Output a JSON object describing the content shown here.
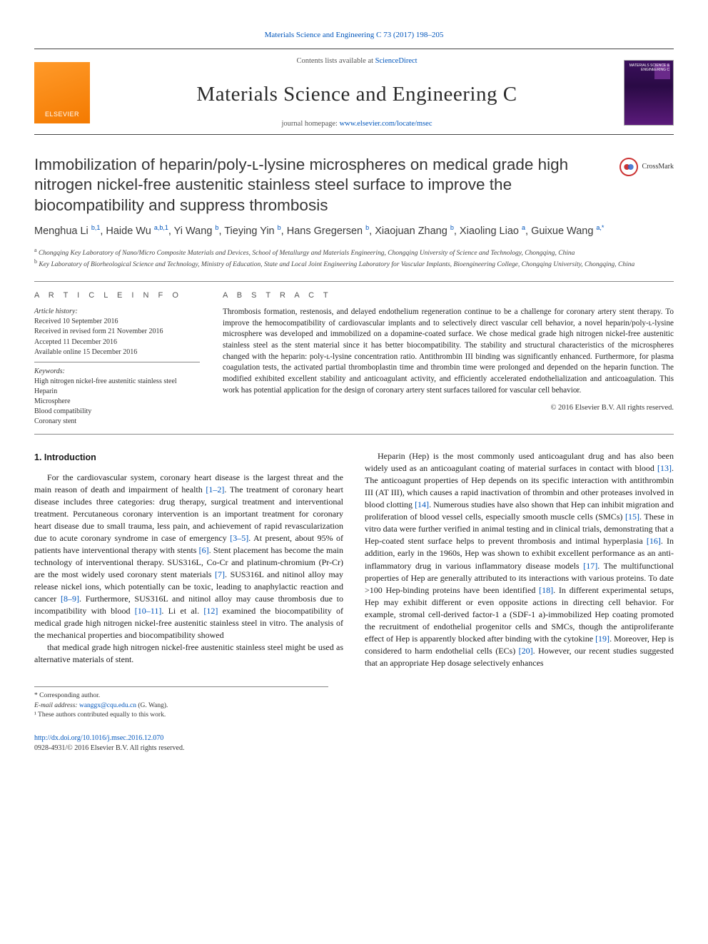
{
  "top_link": {
    "prefix": "",
    "text": "Materials Science and Engineering C 73 (2017) 198–205"
  },
  "masthead": {
    "publisher_logo_text": "ELSEVIER",
    "contents_line_prefix": "Contents lists available at ",
    "contents_line_link": "ScienceDirect",
    "journal_title": "Materials Science and Engineering C",
    "homepage_prefix": "journal homepage: ",
    "homepage_url": "www.elsevier.com/locate/msec",
    "cover_label": "MATERIALS SCIENCE & ENGINEERING C"
  },
  "crossmark_label": "CrossMark",
  "article": {
    "title": "Immobilization of heparin/poly-ʟ-lysine microspheres on medical grade high nitrogen nickel-free austenitic stainless steel surface to improve the biocompatibility and suppress thrombosis",
    "authors_html_segments": [
      {
        "name": "Menghua Li",
        "sup": "b,1"
      },
      {
        "name": "Haide Wu",
        "sup": "a,b,1"
      },
      {
        "name": "Yi Wang",
        "sup": "b"
      },
      {
        "name": "Tieying Yin",
        "sup": "b"
      },
      {
        "name": "Hans Gregersen",
        "sup": "b"
      },
      {
        "name": "Xiaojuan Zhang",
        "sup": "b"
      },
      {
        "name": "Xiaoling Liao",
        "sup": "a"
      },
      {
        "name": "Guixue Wang",
        "sup": "a,*"
      }
    ],
    "affiliations": [
      {
        "key": "a",
        "text": "Chongqing Key Laboratory of Nano/Micro Composite Materials and Devices, School of Metallurgy and Materials Engineering, Chongqing University of Science and Technology, Chongqing, China"
      },
      {
        "key": "b",
        "text": "Key Laboratory of Biorheological Science and Technology, Ministry of Education, State and Local Joint Engineering Laboratory for Vascular Implants, Bioengineering College, Chongqing University, Chongqing, China"
      }
    ]
  },
  "info": {
    "heading": "A R T I C L E   I N F O",
    "history_label": "Article history:",
    "history": [
      "Received 10 September 2016",
      "Received in revised form 21 November 2016",
      "Accepted 11 December 2016",
      "Available online 15 December 2016"
    ],
    "keywords_label": "Keywords:",
    "keywords": [
      "High nitrogen nickel-free austenitic stainless steel",
      "Heparin",
      "Microsphere",
      "Blood compatibility",
      "Coronary stent"
    ]
  },
  "abstract": {
    "heading": "A B S T R A C T",
    "text": "Thrombosis formation, restenosis, and delayed endothelium regeneration continue to be a challenge for coronary artery stent therapy. To improve the hemocompatibility of cardiovascular implants and to selectively direct vascular cell behavior, a novel heparin/poly-ʟ-lysine microsphere was developed and immobilized on a dopamine-coated surface. We chose medical grade high nitrogen nickel-free austenitic stainless steel as the stent material since it has better biocompatibility. The stability and structural characteristics of the microspheres changed with the heparin: poly-ʟ-lysine concentration ratio. Antithrombin III binding was significantly enhanced. Furthermore, for plasma coagulation tests, the activated partial thromboplastin time and thrombin time were prolonged and depended on the heparin function. The modified exhibited excellent stability and anticoagulant activity, and efficiently accelerated endothelialization and anticoagulation. This work has potential application for the design of coronary artery stent surfaces tailored for vascular cell behavior.",
    "copyright": "© 2016 Elsevier B.V. All rights reserved."
  },
  "section1": {
    "heading": "1. Introduction",
    "p1": "For the cardiovascular system, coronary heart disease is the largest threat and the main reason of death and impairment of health [1–2]. The treatment of coronary heart disease includes three categories: drug therapy, surgical treatment and interventional treatment. Percutaneous coronary intervention is an important treatment for coronary heart disease due to small trauma, less pain, and achievement of rapid revascularization due to acute coronary syndrome in case of emergency [3–5]. At present, about 95% of patients have interventional therapy with stents [6]. Stent placement has become the main technology of interventional therapy. SUS316L, Co-Cr and platinum-chromium (Pr-Cr) are the most widely used coronary stent materials [7]. SUS316L and nitinol alloy may release nickel ions, which potentially can be toxic, leading to anaphylactic reaction and cancer [8–9]. Furthermore, SUS316L and nitinol alloy may cause thrombosis due to incompatibility with blood [10–11]. Li et al. [12] examined the biocompatibility of medical grade high nitrogen nickel-free austenitic stainless steel in vitro. The analysis of the mechanical properties and biocompatibility showed",
    "p2": "that medical grade high nitrogen nickel-free austenitic stainless steel might be used as alternative materials of stent.",
    "p3": "Heparin (Hep) is the most commonly used anticoagulant drug and has also been widely used as an anticoagulant coating of material surfaces in contact with blood [13]. The anticoagunt properties of Hep depends on its specific interaction with antithrombin III (AT III), which causes a rapid inactivation of thrombin and other proteases involved in blood clotting [14]. Numerous studies have also shown that Hep can inhibit migration and proliferation of blood vessel cells, especially smooth muscle cells (SMCs) [15]. These in vitro data were further verified in animal testing and in clinical trials, demonstrating that a Hep-coated stent surface helps to prevent thrombosis and intimal hyperplasia [16]. In addition, early in the 1960s, Hep was shown to exhibit excellent performance as an anti-inflammatory drug in various inflammatory disease models [17]. The multifunctional properties of Hep are generally attributed to its interactions with various proteins. To date >100 Hep-binding proteins have been identified [18]. In different experimental setups, Hep may exhibit different or even opposite actions in directing cell behavior. For example, stromal cell-derived factor-1 a (SDF-1 a)-immobilized Hep coating promoted the recruitment of endothelial progenitor cells and SMCs, though the antiproliferante effect of Hep is apparently blocked after binding with the cytokine [19]. Moreover, Hep is considered to harm endothelial cells (ECs) [20]. However, our recent studies suggested that an appropriate Hep dosage selectively enhances"
  },
  "footnotes": {
    "corresponding": "* Corresponding author.",
    "email_label": "E-mail address:",
    "email": "wanggx@cqu.edu.cn",
    "email_name": "(G. Wang).",
    "equal": "¹ These authors contributed equally to this work."
  },
  "footer": {
    "doi": "http://dx.doi.org/10.1016/j.msec.2016.12.070",
    "issn_line": "0928-4931/© 2016 Elsevier B.V. All rights reserved."
  },
  "colors": {
    "link": "#0055bb",
    "text": "#1a1a1a",
    "rule": "#888888",
    "elsevier_orange": "#f47a00",
    "cover_purple": "#3a0f5c"
  }
}
